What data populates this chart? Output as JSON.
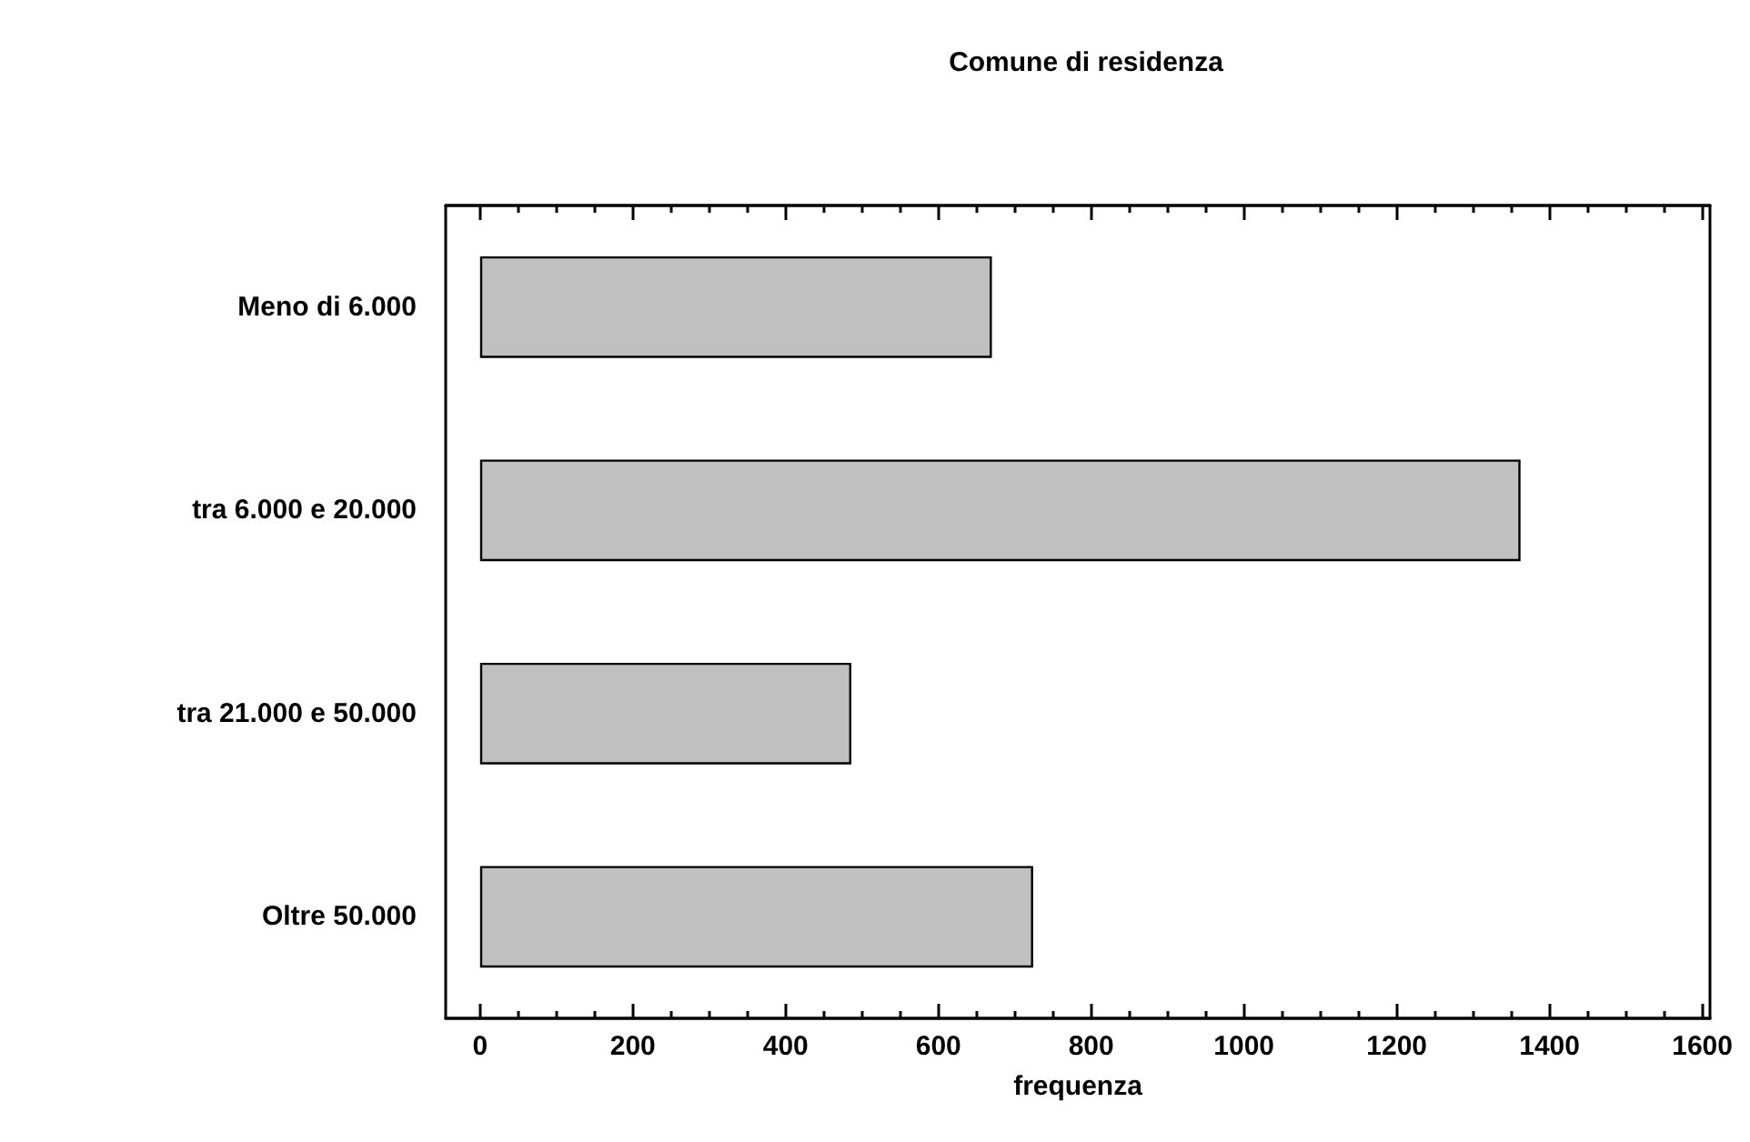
{
  "chart_data": {
    "type": "bar",
    "orientation": "horizontal",
    "title": "Comune di residenza",
    "xlabel": "frequenza",
    "categories": [
      "Meno di 6.000",
      "tra 6.000 e 20.000",
      "tra 21.000 e 50.000",
      "Oltre 50.000"
    ],
    "values": [
      670,
      1362,
      486,
      724
    ],
    "color": "#c0c0c0",
    "xlim": [
      -45,
      1610
    ],
    "xticks": [
      0,
      {
        "value": 50,
        "label": null
      },
      {
        "value": 100,
        "label": null
      },
      {
        "value": 150,
        "label": null
      },
      200,
      {
        "value": 250,
        "label": null
      },
      {
        "value": 300,
        "label": null
      },
      {
        "value": 350,
        "label": null
      },
      400,
      {
        "value": 450,
        "label": null
      },
      {
        "value": 500,
        "label": null
      },
      {
        "value": 550,
        "label": null
      },
      600,
      {
        "value": 650,
        "label": null
      },
      {
        "value": 700,
        "label": null
      },
      {
        "value": 750,
        "label": null
      },
      800,
      {
        "value": 850,
        "label": null
      },
      {
        "value": 900,
        "label": null
      },
      {
        "value": 950,
        "label": null
      },
      1000,
      {
        "value": 1050,
        "label": null
      },
      {
        "value": 1100,
        "label": null
      },
      {
        "value": 1150,
        "label": null
      },
      1200,
      {
        "value": 1250,
        "label": null
      },
      {
        "value": 1300,
        "label": null
      },
      {
        "value": 1350,
        "label": null
      },
      1400,
      {
        "value": 1450,
        "label": null
      },
      {
        "value": 1500,
        "label": null
      },
      {
        "value": 1550,
        "label": null
      },
      1600
    ],
    "grid": false
  }
}
